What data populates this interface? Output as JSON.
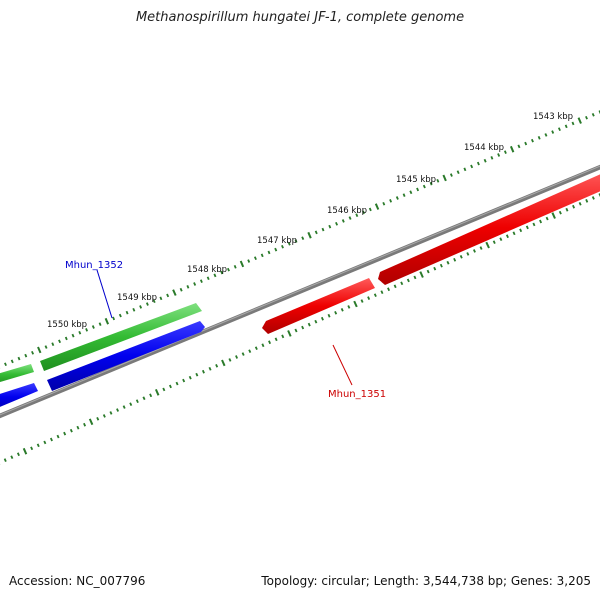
{
  "title": "Methanospirillum hungatei JF-1, complete genome",
  "footer": {
    "accession": "Accession: NC_007796",
    "summary": "Topology: circular; Length: 3,544,738 bp; Genes: 3,205"
  },
  "scale_labels": [
    "1543 kbp",
    "1544 kbp",
    "1545 kbp",
    "1546 kbp",
    "1547 kbp",
    "1548 kbp",
    "1549 kbp",
    "1550 kbp"
  ],
  "genes": [
    {
      "name": "Mhun_1352",
      "color": "#0000cc"
    },
    {
      "name": "Mhun_1351",
      "color": "#cc0000"
    }
  ],
  "colors": {
    "backbone": "#777777",
    "tick": "#2a7a2a",
    "forward_track": "#33bb33",
    "forward_track_2": "#0000ee",
    "reverse_track": "#ee0000"
  }
}
